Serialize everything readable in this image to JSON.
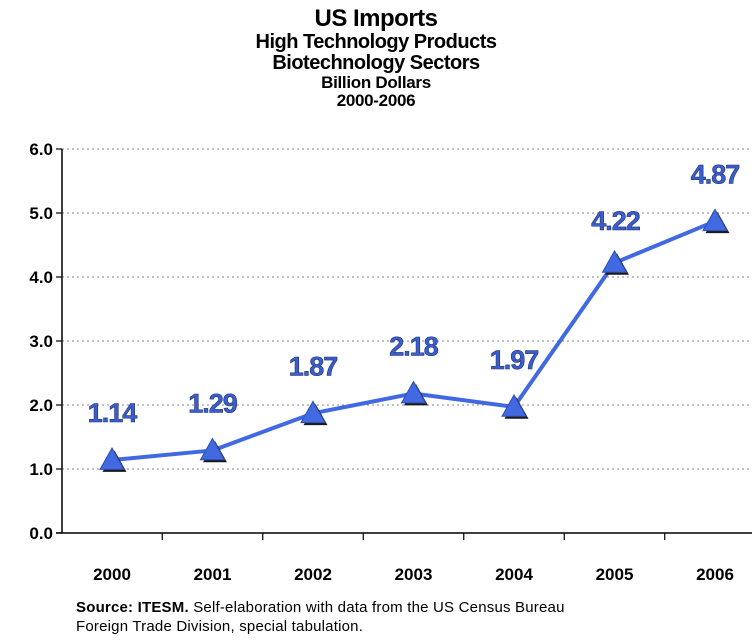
{
  "chart_data": {
    "type": "line",
    "title": "US Imports",
    "subtitles": [
      "High Technology Products",
      "Biotechnology Sectors",
      "Billion Dollars",
      "2000-2006"
    ],
    "categories": [
      "2000",
      "2001",
      "2002",
      "2003",
      "2004",
      "2005",
      "2006"
    ],
    "series": [
      {
        "values": [
          1.14,
          1.29,
          1.87,
          2.18,
          1.97,
          4.22,
          4.87
        ]
      }
    ],
    "data_labels": [
      "1.14",
      "1.29",
      "1.87",
      "2.18",
      "1.97",
      "4.22",
      "4.87"
    ],
    "yticks": [
      "0.0",
      "1.0",
      "2.0",
      "3.0",
      "4.0",
      "5.0",
      "6.0"
    ],
    "ylim": [
      0,
      6
    ],
    "grid": true,
    "marker": "triangle",
    "line_color": "#4169e1",
    "label_color": "#3a5fcd"
  },
  "source": {
    "lead": "Source: ITESM.",
    "line1_rest": " Self-elaboration with data from the US Census Bureau",
    "line2": "Foreign Trade Division, special tabulation."
  }
}
